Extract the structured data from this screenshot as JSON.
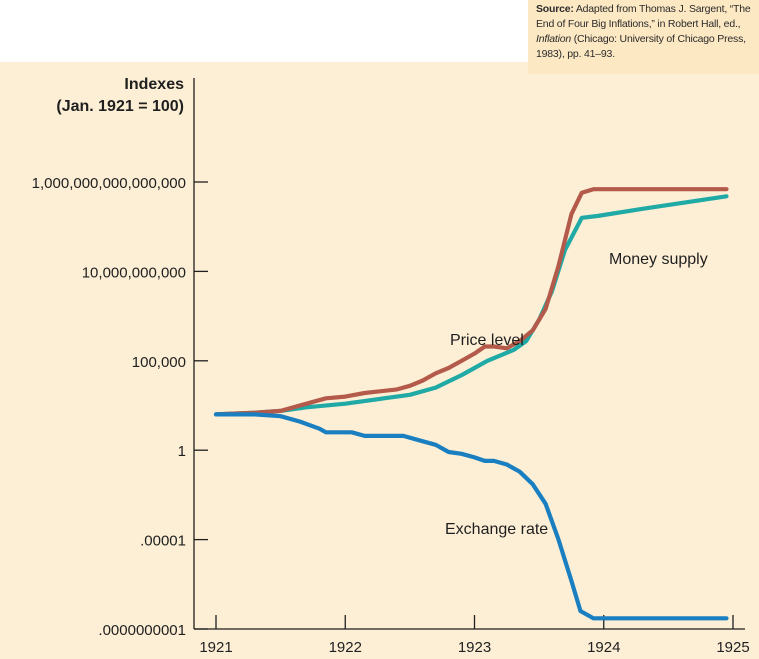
{
  "source": {
    "label": "Source:",
    "text_before": "Adapted from Thomas J. Sargent, “The End of Four Big Inflations,” in Robert Hall, ed.,",
    "italic_title": "Inflation",
    "text_after": "(Chicago: University of Chicago Press, 1983), pp. 41–93."
  },
  "colors": {
    "price_level": "#b45a4a",
    "money_supply": "#20aaa5",
    "exchange_rate": "#1a7fc0",
    "panel_bg": "#fdefd6",
    "source_bg": "#fce8c3",
    "axis": "#1f1f1f"
  },
  "chart_data": {
    "type": "line",
    "title": "",
    "ylabel_line1": "Indexes",
    "ylabel_line2": "(Jan. 1921 = 100)",
    "xlabel": "",
    "y_scale": "log10",
    "ylim_log10": [
      -10,
      17
    ],
    "xlim": [
      1921,
      1925
    ],
    "x_ticks": [
      "1921",
      "1922",
      "1923",
      "1924",
      "1925"
    ],
    "y_ticks": [
      {
        "label": "1,000,000,000,000,000",
        "log10": 15
      },
      {
        "label": "10,000,000,000",
        "log10": 10
      },
      {
        "label": "100,000",
        "log10": 5
      },
      {
        "label": "1",
        "log10": 0
      },
      {
        "label": ".00001",
        "log10": -5
      },
      {
        "label": ".0000000001",
        "log10": -10
      }
    ],
    "series": [
      {
        "name": "Price level",
        "x": [
          1921.0,
          1921.3,
          1921.5,
          1921.7,
          1921.85,
          1922.0,
          1922.15,
          1922.4,
          1922.5,
          1922.6,
          1922.7,
          1922.8,
          1922.9,
          1923.0,
          1923.08,
          1923.15,
          1923.25,
          1923.35,
          1923.45,
          1923.55,
          1923.65,
          1923.75,
          1923.83,
          1923.92,
          1924.0,
          1924.5,
          1924.95
        ],
        "y": [
          2.0,
          2.1,
          2.2,
          2.6,
          2.9,
          3.0,
          3.2,
          3.4,
          3.6,
          3.9,
          4.3,
          4.6,
          5.0,
          5.4,
          5.8,
          5.8,
          5.7,
          6.1,
          6.7,
          7.9,
          10.3,
          13.2,
          14.4,
          14.6,
          14.6,
          14.6,
          14.6
        ]
      },
      {
        "name": "Money supply",
        "x": [
          1921.0,
          1921.3,
          1921.5,
          1921.7,
          1922.0,
          1922.3,
          1922.5,
          1922.7,
          1922.9,
          1923.0,
          1923.1,
          1923.2,
          1923.3,
          1923.4,
          1923.5,
          1923.6,
          1923.7,
          1923.83,
          1923.95,
          1924.3,
          1924.95
        ],
        "y": [
          2.0,
          2.1,
          2.2,
          2.4,
          2.6,
          2.9,
          3.1,
          3.5,
          4.2,
          4.6,
          5.0,
          5.3,
          5.6,
          6.1,
          7.3,
          8.9,
          11.2,
          13.0,
          13.1,
          13.5,
          14.2
        ]
      },
      {
        "name": "Exchange rate",
        "x": [
          1921.0,
          1921.3,
          1921.5,
          1921.65,
          1921.8,
          1921.85,
          1921.95,
          1922.05,
          1922.15,
          1922.3,
          1922.45,
          1922.6,
          1922.7,
          1922.8,
          1922.9,
          1923.0,
          1923.08,
          1923.15,
          1923.25,
          1923.35,
          1923.45,
          1923.55,
          1923.65,
          1923.75,
          1923.82,
          1923.92,
          1924.3,
          1924.95
        ],
        "y": [
          2.0,
          2.0,
          1.9,
          1.6,
          1.2,
          1.0,
          1.0,
          1.0,
          0.8,
          0.8,
          0.8,
          0.5,
          0.3,
          -0.1,
          -0.2,
          -0.4,
          -0.6,
          -0.6,
          -0.8,
          -1.2,
          -1.9,
          -3.0,
          -5.0,
          -7.3,
          -9.0,
          -9.4,
          -9.4,
          -9.4
        ]
      }
    ],
    "annotations": [
      {
        "text": "Money supply",
        "series": "Money supply"
      },
      {
        "text": "Price level",
        "series": "Price level"
      },
      {
        "text": "Exchange rate",
        "series": "Exchange rate"
      }
    ]
  }
}
